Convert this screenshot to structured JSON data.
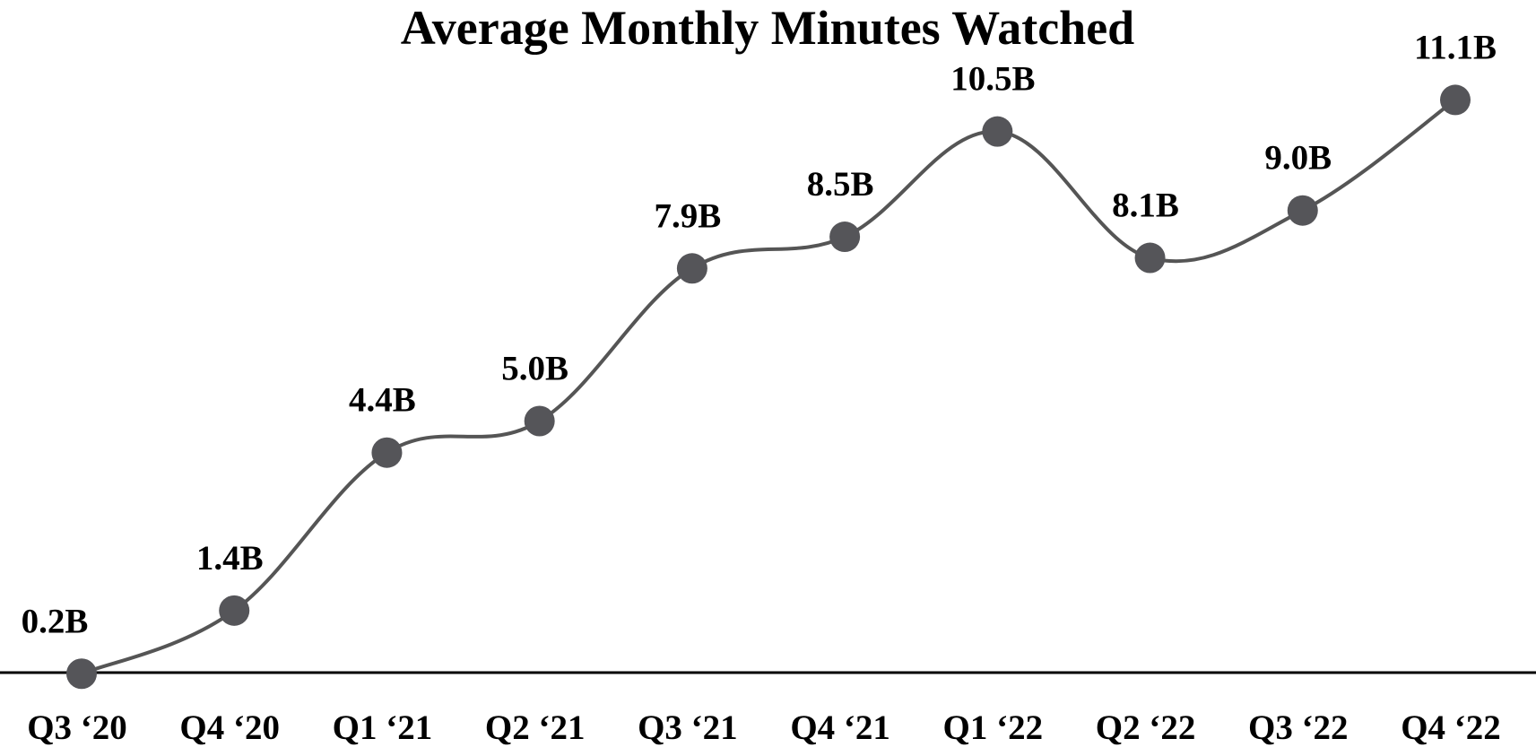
{
  "chart_data": {
    "type": "line",
    "title": "Average Monthly Minutes Watched",
    "categories": [
      "Q3 ‘20",
      "Q4 ‘20",
      "Q1 ‘21",
      "Q2 ‘21",
      "Q3 ‘21",
      "Q4 ‘21",
      "Q1 ‘22",
      "Q2 ‘22",
      "Q3 ‘22",
      "Q4 ‘22"
    ],
    "values": [
      0.2,
      1.4,
      4.4,
      5.0,
      7.9,
      8.5,
      10.5,
      8.1,
      9.0,
      11.1
    ],
    "data_labels": [
      "0.2B",
      "1.4B",
      "4.4B",
      "5.0B",
      "7.9B",
      "8.5B",
      "10.5B",
      "8.1B",
      "9.0B",
      "11.1B"
    ],
    "unit": "B",
    "xlabel": "",
    "ylabel": "",
    "y_axis_visible": false,
    "grid": false,
    "legend": "none",
    "colors": {
      "line": "#555555",
      "marker": "#555559",
      "axis": "#000000",
      "text": "#000000"
    }
  }
}
